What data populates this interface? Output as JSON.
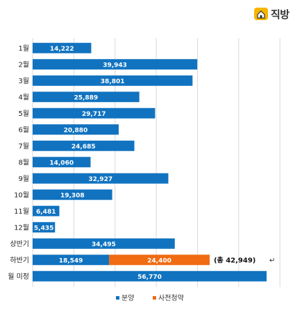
{
  "logo": {
    "text": "직방",
    "icon": "house-with-door-logo-icon"
  },
  "colors": {
    "series0": "#1173c0",
    "series1": "#f06b12",
    "grid": "#d9d9d9"
  },
  "chart_data": {
    "type": "bar",
    "orientation": "horizontal",
    "stacked": true,
    "categories": [
      "1월",
      "2월",
      "3월",
      "4월",
      "5월",
      "6월",
      "7월",
      "8월",
      "9월",
      "10월",
      "11월",
      "12월",
      "상반기",
      "하반기",
      "월 미정"
    ],
    "series": [
      {
        "name": "분양",
        "values": [
          14222,
          39943,
          38801,
          25889,
          29717,
          20880,
          24685,
          14060,
          32927,
          19308,
          6481,
          5435,
          34495,
          18549,
          56770
        ]
      },
      {
        "name": "사전청약",
        "values": [
          null,
          null,
          null,
          null,
          null,
          null,
          null,
          null,
          null,
          null,
          null,
          null,
          null,
          24400,
          null
        ]
      }
    ],
    "data_labels": [
      "14,222",
      "39,943",
      "38,801",
      "25,889",
      "29,717",
      "20,880",
      "24,685",
      "14,060",
      "32,927",
      "19,308",
      "6,481",
      "5,435",
      "34,495",
      "18,549",
      "56,770"
    ],
    "data_labels_series1": [
      "",
      "",
      "",
      "",
      "",
      "",
      "",
      "",
      "",
      "",
      "",
      "",
      "",
      "24,400",
      ""
    ],
    "annotation": {
      "category": "하반기",
      "text": "(총  42,949)",
      "mark": "↵"
    },
    "xlim": [
      0,
      60000
    ],
    "grid": true,
    "legend_position": "bottom"
  }
}
